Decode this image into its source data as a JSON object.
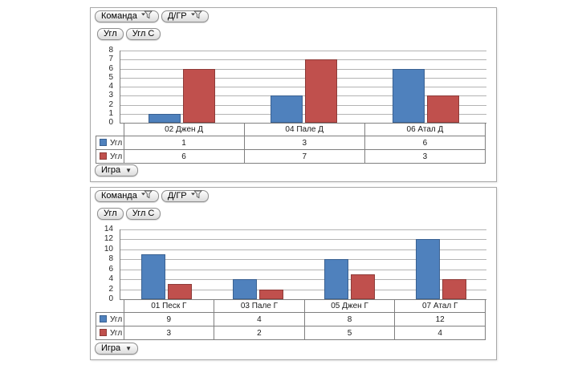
{
  "colors": {
    "series_blue": "#4F81BD",
    "series_blue_border": "#3A6191",
    "series_red": "#C0504D",
    "series_red_border": "#8E3B38",
    "gridline": "#b3b3b3",
    "panel_border": "#a8a8a8"
  },
  "panels": [
    {
      "filter_buttons": [
        {
          "label": "Команда"
        },
        {
          "label": "Д/ГР"
        }
      ],
      "series_buttons": [
        {
          "label": "Угл"
        },
        {
          "label": "Угл С"
        }
      ],
      "game_button": {
        "label": "Игра"
      }
    },
    {
      "filter_buttons": [
        {
          "label": "Команда"
        },
        {
          "label": "Д/ГР"
        }
      ],
      "series_buttons": [
        {
          "label": "Угл"
        },
        {
          "label": "Угл С"
        }
      ],
      "game_button": {
        "label": "Игра"
      }
    }
  ],
  "chart_data": [
    {
      "type": "bar",
      "categories": [
        "02 Джен Д",
        "04 Пале Д",
        "06 Атал Д"
      ],
      "series": [
        {
          "name": "Угл",
          "values": [
            1,
            3,
            6
          ],
          "color": "#4F81BD",
          "border_color": "#3A6191"
        },
        {
          "name": "Угл С",
          "values": [
            6,
            7,
            3
          ],
          "color": "#C0504D",
          "border_color": "#8E3B38"
        }
      ],
      "title": "",
      "xlabel": "",
      "ylabel": "",
      "ylim": [
        0,
        8
      ],
      "ytick_step": 1,
      "grid": true,
      "legend_position": "data-table-below"
    },
    {
      "type": "bar",
      "categories": [
        "01 Песк Г",
        "03 Пале Г",
        "05 Джен Г",
        "07 Атал Г"
      ],
      "series": [
        {
          "name": "Угл",
          "values": [
            9,
            4,
            8,
            12
          ],
          "color": "#4F81BD",
          "border_color": "#3A6191"
        },
        {
          "name": "Угл С",
          "values": [
            3,
            2,
            5,
            4
          ],
          "color": "#C0504D",
          "border_color": "#8E3B38"
        }
      ],
      "title": "",
      "xlabel": "",
      "ylabel": "",
      "ylim": [
        0,
        14
      ],
      "ytick_step": 2,
      "grid": true,
      "legend_position": "data-table-below"
    }
  ]
}
